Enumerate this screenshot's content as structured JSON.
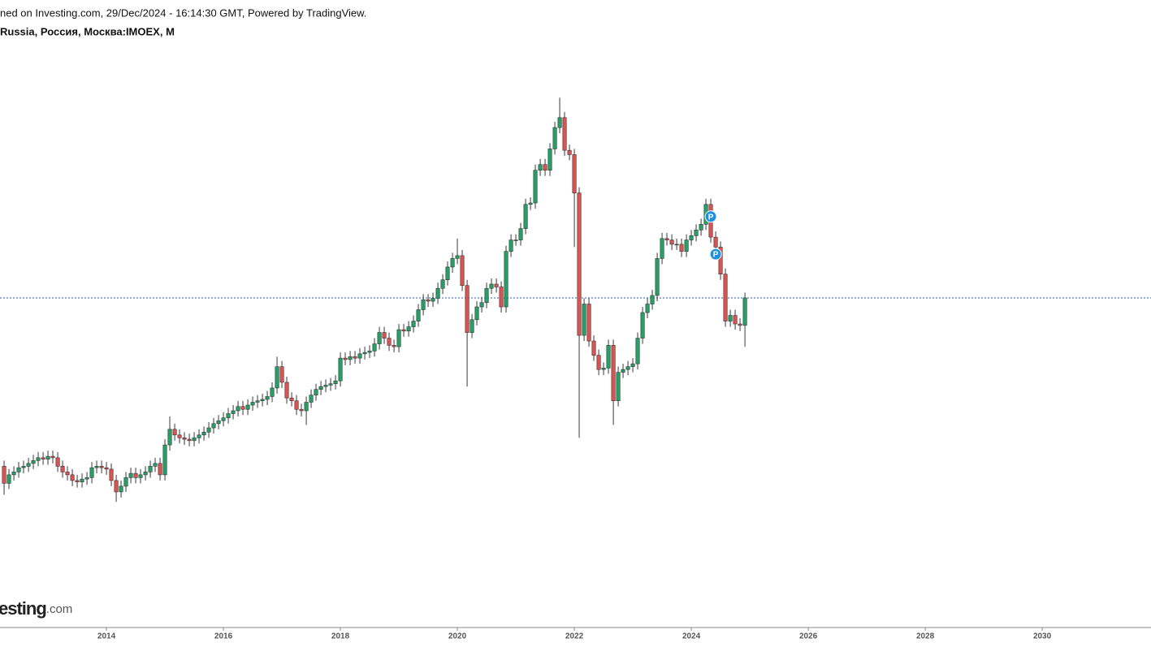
{
  "chart_data": {
    "type": "candlestick",
    "title": "ned on Investing.com, 29/Dec/2024 - 16:14:30 GMT, Powered by TradingView.",
    "subtitle": "Russia, Россия, Москва:IMOEX, M",
    "logo_text": "esting",
    "logo_suffix": ".com",
    "markers": [
      {
        "label": "P",
        "x": 2024.333,
        "color": "#1e90e0"
      },
      {
        "label": "P",
        "x": 2024.417,
        "color": "#1e90e0"
      }
    ],
    "up_color": "#21a366",
    "down_color": "#e0514f",
    "wick_color": "#3a3a3a",
    "price_line": 2883,
    "price_line_color": "#2a5db0",
    "xlim": [
      2012.18,
      2031.86
    ],
    "xticks": [
      2014,
      2016,
      2018,
      2020,
      2022,
      2024,
      2026,
      2028,
      2030
    ],
    "ylim": [
      567,
      4691
    ],
    "x": [
      2012.25,
      2012.333,
      2012.417,
      2012.5,
      2012.583,
      2012.667,
      2012.75,
      2012.833,
      2012.917,
      2013,
      2013.083,
      2013.167,
      2013.25,
      2013.333,
      2013.417,
      2013.5,
      2013.583,
      2013.667,
      2013.75,
      2013.833,
      2013.917,
      2014,
      2014.083,
      2014.167,
      2014.25,
      2014.333,
      2014.417,
      2014.5,
      2014.583,
      2014.667,
      2014.75,
      2014.833,
      2014.917,
      2015,
      2015.083,
      2015.167,
      2015.25,
      2015.333,
      2015.417,
      2015.5,
      2015.583,
      2015.667,
      2015.75,
      2015.833,
      2015.917,
      2016,
      2016.083,
      2016.167,
      2016.25,
      2016.333,
      2016.417,
      2016.5,
      2016.583,
      2016.667,
      2016.75,
      2016.833,
      2016.917,
      2017,
      2017.083,
      2017.167,
      2017.25,
      2017.333,
      2017.417,
      2017.5,
      2017.583,
      2017.667,
      2017.75,
      2017.833,
      2017.917,
      2018,
      2018.083,
      2018.167,
      2018.25,
      2018.333,
      2018.417,
      2018.5,
      2018.583,
      2018.667,
      2018.75,
      2018.833,
      2018.917,
      2019,
      2019.083,
      2019.167,
      2019.25,
      2019.333,
      2019.417,
      2019.5,
      2019.583,
      2019.667,
      2019.75,
      2019.833,
      2019.917,
      2020,
      2020.083,
      2020.167,
      2020.25,
      2020.333,
      2020.417,
      2020.5,
      2020.583,
      2020.667,
      2020.75,
      2020.833,
      2020.917,
      2021,
      2021.083,
      2021.167,
      2021.25,
      2021.333,
      2021.417,
      2021.5,
      2021.583,
      2021.667,
      2021.75,
      2021.833,
      2021.917,
      2022,
      2022.083,
      2022.167,
      2022.25,
      2022.333,
      2022.417,
      2022.5,
      2022.583,
      2022.667,
      2022.75,
      2022.833,
      2022.917,
      2023,
      2023.083,
      2023.167,
      2023.25,
      2023.333,
      2023.417,
      2023.5,
      2023.583,
      2023.667,
      2023.75,
      2023.833,
      2023.917,
      2024,
      2024.083,
      2024.167,
      2024.25,
      2024.333,
      2024.417,
      2024.5,
      2024.583,
      2024.667,
      2024.75,
      2024.833,
      2024.917
    ],
    "open": [
      1700,
      1580,
      1640,
      1660,
      1690,
      1700,
      1720,
      1740,
      1760,
      1750,
      1770,
      1760,
      1700,
      1660,
      1640,
      1600,
      1590,
      1610,
      1620,
      1690,
      1700,
      1690,
      1680,
      1600,
      1520,
      1560,
      1620,
      1650,
      1620,
      1640,
      1660,
      1700,
      1720,
      1640,
      1850,
      1960,
      1920,
      1900,
      1890,
      1880,
      1900,
      1920,
      1940,
      1970,
      2000,
      2020,
      2040,
      2070,
      2090,
      2120,
      2100,
      2130,
      2150,
      2160,
      2170,
      2190,
      2250,
      2400,
      2290,
      2180,
      2160,
      2100,
      2090,
      2150,
      2200,
      2240,
      2260,
      2270,
      2280,
      2300,
      2460,
      2450,
      2470,
      2460,
      2490,
      2500,
      2510,
      2560,
      2640,
      2600,
      2550,
      2540,
      2660,
      2650,
      2680,
      2720,
      2800,
      2870,
      2860,
      2880,
      2950,
      3010,
      3100,
      3160,
      3180,
      2970,
      2640,
      2730,
      2820,
      2850,
      2950,
      2980,
      2960,
      2820,
      3210,
      3290,
      3290,
      3370,
      3540,
      3550,
      3780,
      3820,
      3780,
      3930,
      4080,
      4150,
      3920,
      3890,
      3620,
      2620,
      2840,
      2580,
      2480,
      2380,
      2390,
      2550,
      2160,
      2360,
      2380,
      2400,
      2420,
      2600,
      2780,
      2840,
      2900,
      3160,
      3300,
      3290,
      3260,
      3260,
      3210,
      3290,
      3320,
      3360,
      3400,
      3540,
      3310,
      3240,
      3050,
      2720,
      2760,
      2700,
      2690
    ],
    "high": [
      1740,
      1680,
      1700,
      1730,
      1740,
      1760,
      1780,
      1800,
      1800,
      1810,
      1810,
      1800,
      1740,
      1700,
      1680,
      1640,
      1650,
      1660,
      1730,
      1740,
      1740,
      1730,
      1720,
      1640,
      1600,
      1660,
      1690,
      1690,
      1680,
      1700,
      1740,
      1760,
      1760,
      1890,
      2050,
      2000,
      1960,
      1940,
      1930,
      1940,
      1960,
      1980,
      2010,
      2040,
      2060,
      2080,
      2110,
      2130,
      2160,
      2160,
      2170,
      2190,
      2200,
      2210,
      2230,
      2290,
      2470,
      2440,
      2330,
      2220,
      2200,
      2140,
      2190,
      2240,
      2280,
      2300,
      2310,
      2320,
      2340,
      2500,
      2500,
      2510,
      2510,
      2530,
      2540,
      2550,
      2600,
      2680,
      2680,
      2640,
      2590,
      2700,
      2700,
      2720,
      2760,
      2840,
      2910,
      2910,
      2920,
      2990,
      3050,
      3140,
      3200,
      3300,
      3220,
      3010,
      2770,
      2860,
      2890,
      2990,
      3020,
      3020,
      3000,
      3250,
      3330,
      3330,
      3410,
      3580,
      3590,
      3820,
      3860,
      3860,
      3970,
      4120,
      4290,
      4190,
      3960,
      3930,
      3660,
      2880,
      2880,
      2620,
      2520,
      2430,
      2590,
      2590,
      2400,
      2420,
      2440,
      2460,
      2640,
      2820,
      2880,
      2940,
      3200,
      3340,
      3340,
      3330,
      3300,
      3300,
      3330,
      3360,
      3400,
      3440,
      3580,
      3580,
      3350,
      3280,
      3090,
      2800,
      2800,
      2740,
      2920
    ],
    "low": [
      1500,
      1540,
      1600,
      1620,
      1650,
      1660,
      1680,
      1700,
      1710,
      1710,
      1720,
      1660,
      1620,
      1600,
      1560,
      1550,
      1550,
      1570,
      1580,
      1650,
      1650,
      1640,
      1560,
      1450,
      1480,
      1520,
      1580,
      1580,
      1580,
      1600,
      1620,
      1660,
      1600,
      1600,
      1810,
      1880,
      1860,
      1850,
      1840,
      1840,
      1860,
      1880,
      1900,
      1930,
      1960,
      1980,
      2000,
      2030,
      2050,
      2060,
      2060,
      2090,
      2110,
      2120,
      2130,
      2150,
      2210,
      2250,
      2140,
      2120,
      2060,
      2050,
      1990,
      2110,
      2160,
      2200,
      2220,
      2230,
      2240,
      2260,
      2410,
      2410,
      2420,
      2420,
      2450,
      2460,
      2470,
      2520,
      2560,
      2510,
      2500,
      2500,
      2610,
      2610,
      2640,
      2680,
      2760,
      2820,
      2820,
      2840,
      2910,
      2970,
      3060,
      3120,
      2930,
      2260,
      2600,
      2690,
      2780,
      2810,
      2910,
      2920,
      2780,
      2780,
      3170,
      3250,
      3250,
      3330,
      3500,
      3510,
      3740,
      3740,
      3740,
      3890,
      4040,
      3880,
      3850,
      3240,
      1900,
      2580,
      2540,
      2440,
      2340,
      2340,
      2350,
      1990,
      2120,
      2320,
      2340,
      2360,
      2380,
      2560,
      2740,
      2800,
      2860,
      3120,
      3250,
      3220,
      3220,
      3170,
      3170,
      3250,
      3280,
      3320,
      3360,
      3270,
      3200,
      3010,
      2680,
      2680,
      2660,
      2650,
      2540
    ],
    "close": [
      1580,
      1640,
      1660,
      1690,
      1700,
      1720,
      1740,
      1760,
      1750,
      1770,
      1760,
      1700,
      1660,
      1640,
      1600,
      1590,
      1610,
      1620,
      1690,
      1700,
      1690,
      1680,
      1600,
      1520,
      1560,
      1620,
      1650,
      1620,
      1640,
      1660,
      1700,
      1720,
      1640,
      1850,
      1960,
      1920,
      1900,
      1890,
      1880,
      1900,
      1920,
      1940,
      1970,
      2000,
      2020,
      2040,
      2070,
      2090,
      2120,
      2100,
      2130,
      2150,
      2160,
      2170,
      2190,
      2250,
      2400,
      2290,
      2180,
      2160,
      2100,
      2090,
      2150,
      2200,
      2240,
      2260,
      2270,
      2280,
      2300,
      2460,
      2450,
      2470,
      2460,
      2490,
      2500,
      2510,
      2560,
      2640,
      2600,
      2550,
      2540,
      2660,
      2650,
      2680,
      2720,
      2800,
      2870,
      2860,
      2880,
      2950,
      3010,
      3100,
      3160,
      3180,
      2970,
      2640,
      2730,
      2820,
      2850,
      2950,
      2980,
      2960,
      2820,
      3210,
      3290,
      3290,
      3370,
      3540,
      3550,
      3780,
      3820,
      3780,
      3930,
      4080,
      4150,
      3920,
      3890,
      3620,
      2620,
      2840,
      2580,
      2480,
      2380,
      2390,
      2550,
      2160,
      2360,
      2380,
      2400,
      2420,
      2600,
      2780,
      2840,
      2900,
      3160,
      3300,
      3290,
      3260,
      3260,
      3210,
      3290,
      3320,
      3360,
      3400,
      3540,
      3310,
      3240,
      3050,
      2720,
      2760,
      2700,
      2690,
      2883
    ]
  }
}
